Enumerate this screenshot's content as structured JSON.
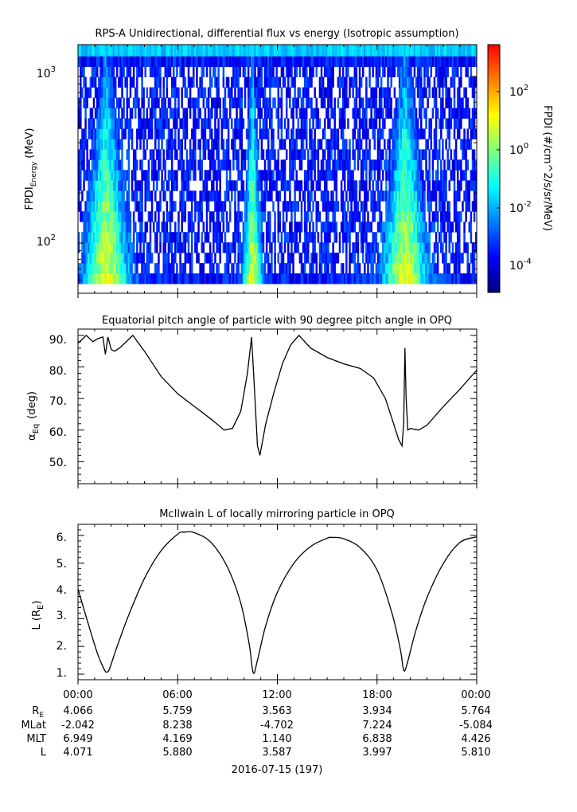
{
  "panel1": {
    "title": "RPS-A Unidirectional, differential flux vs energy (Isotropic assumption)",
    "ylabel_main": "FPDI",
    "ylabel_sub": "Energy",
    "ylabel_unit": "(MeV)",
    "yticks": [
      {
        "base": "10",
        "exp": "3"
      },
      {
        "base": "10",
        "exp": "2"
      }
    ],
    "colorbar": {
      "label": "FPDI (#/cm^2/s/sr/MeV)",
      "ticks": [
        {
          "base": "10",
          "exp": "2"
        },
        {
          "base": "10",
          "exp": "0"
        },
        {
          "base": "10",
          "exp": "-2"
        },
        {
          "base": "10",
          "exp": "-4"
        }
      ],
      "colors": [
        "#00007f",
        "#0000ff",
        "#007fff",
        "#00ffff",
        "#7fff7f",
        "#ffff00",
        "#ff7f00",
        "#ff0000"
      ]
    }
  },
  "panel2": {
    "title": "Equatorial pitch angle of particle with 90 degree pitch angle in OPQ",
    "ylabel_main": "α",
    "ylabel_sub": "Eq",
    "ylabel_unit": "(deg)",
    "yticks": [
      "90.",
      "80.",
      "70.",
      "60.",
      "50."
    ]
  },
  "panel3": {
    "title": "McIlwain L of locally mirroring particle in OPQ",
    "ylabel_main": "L (R",
    "ylabel_sub": "E",
    "ylabel_unit": ")",
    "yticks": [
      "6.",
      "5.",
      "4.",
      "3.",
      "2.",
      "1."
    ]
  },
  "xaxis": {
    "ticks": [
      "00:00",
      "06:00",
      "12:00",
      "18:00",
      "00:00"
    ],
    "date_label": "2016-07-15 (197)"
  },
  "ephemeris": {
    "labels": [
      {
        "main": "R",
        "sub": "E"
      },
      {
        "main": "MLat",
        "sub": ""
      },
      {
        "main": "MLT",
        "sub": ""
      },
      {
        "main": "L",
        "sub": ""
      }
    ],
    "rows": [
      [
        "4.066",
        "5.759",
        "3.563",
        "3.934",
        "5.764"
      ],
      [
        "-2.042",
        "8.238",
        "-4.702",
        "7.224",
        "-5.084"
      ],
      [
        "6.949",
        "4.169",
        "1.140",
        "6.838",
        "4.426"
      ],
      [
        "4.071",
        "5.880",
        "3.587",
        "3.997",
        "5.810"
      ]
    ]
  },
  "chart_data": [
    {
      "type": "heatmap",
      "title": "RPS-A Unidirectional, differential flux vs energy (Isotropic assumption)",
      "ylabel": "FPDI Energy (MeV)",
      "yscale": "log",
      "ylim": [
        50,
        1550
      ],
      "xlim_hours": [
        0,
        24
      ],
      "colorbar_label": "FPDI (#/cm^2/s/sr/MeV)",
      "colorbar_scale": "log",
      "colorbar_range": [
        1e-05,
        1000.0
      ],
      "enhancement_times_hours": [
        1.7,
        10.5,
        19.7
      ]
    },
    {
      "type": "line",
      "title": "Equatorial pitch angle of particle with 90 degree pitch angle in OPQ",
      "ylabel": "α Eq (deg)",
      "xlim_hours": [
        0,
        24
      ],
      "ylim": [
        43,
        92
      ],
      "x": [
        0,
        0.5,
        0.9,
        1.2,
        1.5,
        1.65,
        1.8,
        2.0,
        2.2,
        2.5,
        3.0,
        3.3,
        4.0,
        5.0,
        6.0,
        7.0,
        8.0,
        8.8,
        9.3,
        9.8,
        10.2,
        10.45,
        10.6,
        10.8,
        10.95,
        11.3,
        11.8,
        12.3,
        12.8,
        13.3,
        14.0,
        15.0,
        16.0,
        17.0,
        17.8,
        18.5,
        19.0,
        19.3,
        19.5,
        19.6,
        19.68,
        19.75,
        19.85,
        20.0,
        20.5,
        21.0,
        22.0,
        23.0,
        24.0
      ],
      "y": [
        87.5,
        90,
        88,
        89,
        89.5,
        84,
        89.5,
        85.5,
        85,
        86,
        88.5,
        90,
        85,
        77,
        71.5,
        67.5,
        63.5,
        60,
        60.5,
        66,
        78,
        89.5,
        75,
        55,
        52,
        62,
        72,
        81,
        87,
        90,
        86,
        83,
        81,
        79.5,
        76.5,
        70,
        62,
        57,
        55,
        62,
        86,
        70,
        60,
        60.5,
        60,
        61.5,
        67.5,
        73,
        79
      ]
    },
    {
      "type": "line",
      "title": "McIlwain L of locally mirroring particle in OPQ",
      "ylabel": "L (R E)",
      "xlim_hours": [
        0,
        24
      ],
      "ylim": [
        0.8,
        6.4
      ],
      "x": [
        0,
        0.3,
        0.7,
        1.2,
        1.6,
        1.75,
        1.9,
        2.3,
        3.0,
        4.0,
        5.0,
        6.0,
        6.4,
        7.0,
        8.0,
        9.0,
        9.8,
        10.3,
        10.55,
        10.8,
        11.3,
        12.0,
        13.0,
        14.0,
        15.0,
        15.3,
        16.0,
        17.0,
        18.0,
        18.9,
        19.4,
        19.6,
        19.8,
        20.3,
        21.0,
        22.0,
        23.0,
        24.0
      ],
      "y": [
        4.07,
        3.45,
        2.65,
        1.7,
        1.15,
        1.08,
        1.2,
        1.9,
        3.05,
        4.45,
        5.45,
        6.05,
        6.12,
        6.1,
        5.75,
        4.85,
        3.55,
        2.1,
        1.05,
        1.5,
        2.75,
        3.95,
        5.0,
        5.6,
        5.9,
        5.93,
        5.88,
        5.55,
        4.75,
        3.2,
        1.9,
        1.15,
        1.35,
        2.5,
        3.75,
        5.0,
        5.75,
        5.95
      ]
    }
  ]
}
